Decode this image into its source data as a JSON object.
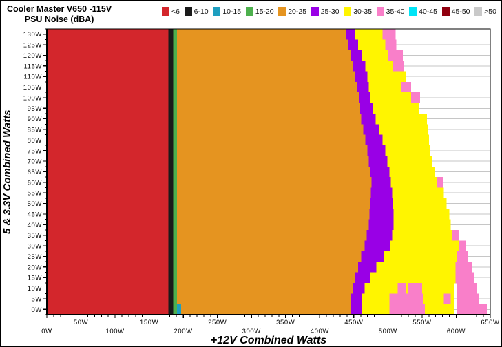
{
  "title": {
    "line1": "Cooler Master V650 -115V",
    "line2": "PSU Noise (dBA)"
  },
  "legend": [
    {
      "label": "<6",
      "color": "#D3262C"
    },
    {
      "label": "6-10",
      "color": "#1A1A1A"
    },
    {
      "label": "10-15",
      "color": "#1E9FC0"
    },
    {
      "label": "15-20",
      "color": "#4DB04D"
    },
    {
      "label": "20-25",
      "color": "#E59420"
    },
    {
      "label": "25-30",
      "color": "#9900E6"
    },
    {
      "label": "30-35",
      "color": "#FFF500"
    },
    {
      "label": "35-40",
      "color": "#F97FC9"
    },
    {
      "label": "40-45",
      "color": "#00E4F6"
    },
    {
      "label": "45-50",
      "color": "#90000F"
    },
    {
      "label": ">50",
      "color": "#C9C9C9"
    }
  ],
  "axes": {
    "x": {
      "title": "+12V Combined Watts",
      "min": 0,
      "max": 650,
      "tick_step": 50,
      "minor_step": 10,
      "tick_labels": [
        "0W",
        "50W",
        "100W",
        "150W",
        "200W",
        "250W",
        "300W",
        "350W",
        "400W",
        "450W",
        "500W",
        "550W",
        "600W",
        "650W"
      ]
    },
    "y": {
      "title": "5 & 3.3V Combined Watts",
      "min": 0,
      "max": 130,
      "tick_step": 5,
      "minor_step": 2.5,
      "tick_labels": [
        "0W",
        "5W",
        "10W",
        "15W",
        "20W",
        "25W",
        "30W",
        "35W",
        "40W",
        "45W",
        "50W",
        "55W",
        "60W",
        "65W",
        "70W",
        "75W",
        "80W",
        "85W",
        "90W",
        "95W",
        "100W",
        "105W",
        "110W",
        "115W",
        "120W",
        "125W",
        "130W"
      ]
    }
  },
  "chart_data": {
    "type": "heatmap",
    "title": "Cooler Master V650 -115V PSU Noise (dBA)",
    "xlabel": "+12V Combined Watts",
    "ylabel": "5 & 3.3V Combined Watts",
    "xlim": [
      0,
      650
    ],
    "ylim": [
      0,
      130
    ],
    "grid": "horizontal-every-5W",
    "legend_position": "top",
    "bins_dBA": [
      "<6",
      "6-10",
      "10-15",
      "15-20",
      "20-25",
      "25-30",
      "30-35",
      "35-40",
      "40-45",
      "45-50",
      ">50"
    ],
    "palette": {
      "red_lt6": "#D3262C",
      "black_6_10": "#1A1A1A",
      "teal_10_15": "#1E9FC0",
      "green_15_20": "#4DB04D",
      "orange_20_25": "#E59420",
      "purple_25_30": "#9900E6",
      "yellow_30_35": "#FFF500",
      "pink_35_40": "#F97FC9",
      "cyan_40_45": "#00E4F6",
      "darkred_45_50": "#90000F",
      "gray_gt50": "#C9C9C9"
    },
    "constant_bands_watts": {
      "red_end": 178,
      "black": [
        178,
        185
      ],
      "green": [
        185,
        191
      ],
      "teal_row0_only": [
        191,
        197
      ]
    },
    "rows": [
      {
        "y": 130,
        "purple": [
          439,
          452
        ],
        "yellow_end": 492,
        "pink": [
          [
            492,
            511
          ]
        ]
      },
      {
        "y": 125,
        "purple": [
          441,
          456
        ],
        "yellow_end": 496,
        "pink": [
          [
            496,
            512
          ]
        ]
      },
      {
        "y": 120,
        "purple": [
          445,
          462
        ],
        "yellow_end": 500,
        "pink": [
          [
            500,
            522
          ]
        ]
      },
      {
        "y": 115,
        "purple": [
          449,
          467
        ],
        "yellow_end": 507,
        "pink": [
          [
            507,
            523
          ]
        ]
      },
      {
        "y": 110,
        "purple": [
          452,
          470
        ],
        "yellow_end": 527,
        "pink": []
      },
      {
        "y": 105,
        "purple": [
          454,
          472
        ],
        "yellow_end": 519,
        "pink": [
          [
            519,
            534
          ]
        ]
      },
      {
        "y": 100,
        "purple": [
          457,
          474
        ],
        "yellow_end": 534,
        "pink": [
          [
            534,
            547
          ]
        ]
      },
      {
        "y": 95,
        "purple": [
          459,
          478
        ],
        "yellow_end": 546,
        "pink": []
      },
      {
        "y": 90,
        "purple": [
          461,
          482
        ],
        "yellow_end": 557,
        "pink": []
      },
      {
        "y": 85,
        "purple": [
          464,
          487
        ],
        "yellow_end": 559,
        "pink": []
      },
      {
        "y": 80,
        "purple": [
          467,
          492
        ],
        "yellow_end": 560,
        "pink": []
      },
      {
        "y": 75,
        "purple": [
          470,
          496
        ],
        "yellow_end": 561,
        "pink": []
      },
      {
        "y": 70,
        "purple": [
          472,
          499
        ],
        "yellow_end": 564,
        "pink": []
      },
      {
        "y": 65,
        "purple": [
          474,
          502
        ],
        "yellow_end": 569,
        "pink": []
      },
      {
        "y": 60,
        "purple": [
          476,
          504
        ],
        "yellow_end": 572,
        "pink": [
          [
            572,
            581
          ]
        ]
      },
      {
        "y": 55,
        "purple": [
          475,
          506
        ],
        "yellow_end": 582,
        "pink": []
      },
      {
        "y": 50,
        "purple": [
          474,
          507
        ],
        "yellow_end": 586,
        "pink": []
      },
      {
        "y": 45,
        "purple": [
          473,
          508
        ],
        "yellow_end": 590,
        "pink": []
      },
      {
        "y": 40,
        "purple": [
          472,
          508
        ],
        "yellow_end": 592,
        "pink": []
      },
      {
        "y": 35,
        "purple": [
          469,
          506
        ],
        "yellow_end": 594,
        "pink": [
          [
            594,
            604
          ]
        ]
      },
      {
        "y": 30,
        "purple": [
          466,
          503
        ],
        "yellow_end": 604,
        "pink": [
          [
            604,
            614
          ]
        ]
      },
      {
        "y": 25,
        "purple": [
          461,
          494
        ],
        "yellow_end": 601,
        "pink": [
          [
            601,
            617
          ]
        ]
      },
      {
        "y": 20,
        "purple": [
          456,
          483
        ],
        "yellow_end": 599,
        "pink": [
          [
            599,
            624
          ]
        ]
      },
      {
        "y": 15,
        "purple": [
          452,
          474
        ],
        "yellow_end": 599,
        "pink": [
          [
            599,
            627
          ]
        ]
      },
      {
        "y": 10,
        "purple": [
          448,
          466
        ],
        "yellow_end": 597,
        "pink": [
          [
            514,
            526
          ],
          [
            529,
            550
          ],
          [
            601,
            631
          ]
        ]
      },
      {
        "y": 5,
        "purple": [
          446,
          462
        ],
        "yellow_end": 597,
        "pink": [
          [
            502,
            551
          ],
          [
            582,
            592
          ],
          [
            601,
            634
          ]
        ]
      },
      {
        "y": 0,
        "purple": [
          446,
          462
        ],
        "yellow_end": 597,
        "pink": [
          [
            502,
            554
          ],
          [
            601,
            645
          ]
        ]
      }
    ]
  }
}
